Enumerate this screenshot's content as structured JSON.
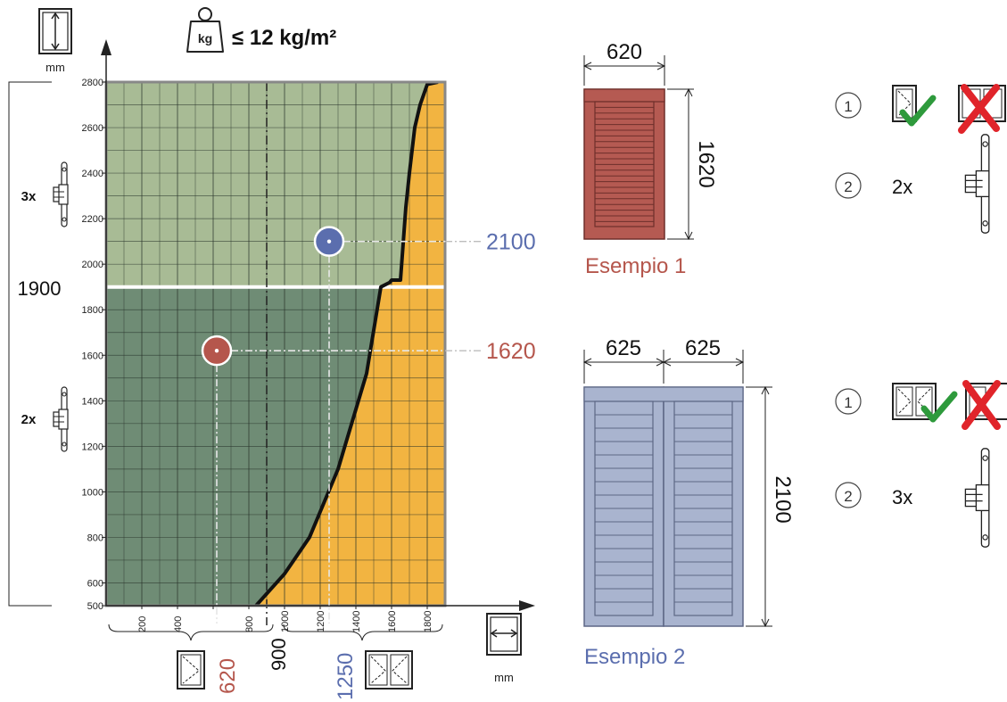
{
  "chart_data": {
    "type": "line",
    "title": "≤ 12 kg/m²",
    "title_icon": "kg",
    "x_unit": "mm",
    "y_unit": "mm",
    "xlim": [
      0,
      1900
    ],
    "ylim": [
      500,
      2800
    ],
    "x_ticks": [
      200,
      400,
      600,
      800,
      1000,
      1200,
      1400,
      1600,
      1800
    ],
    "x_tick_labels": [
      "200",
      "400",
      "",
      "800",
      "1000",
      "1200",
      "1400",
      "1600",
      "1800"
    ],
    "y_ticks": [
      500,
      600,
      800,
      1000,
      1200,
      1400,
      1600,
      1800,
      2000,
      2200,
      2400,
      2600,
      2800
    ],
    "y_tick_labels": [
      "500",
      "600",
      "800",
      "1000",
      "1200",
      "1400",
      "1600",
      "1800",
      "2000",
      "2200",
      "2400",
      "2600",
      "2800"
    ],
    "grid": true,
    "limit_curve": {
      "x": [
        840,
        1000,
        1140,
        1300,
        1460,
        1540,
        1590,
        1600,
        1650,
        1680,
        1700,
        1730,
        1760,
        1800,
        1860
      ],
      "y": [
        500,
        640,
        800,
        1100,
        1520,
        1900,
        1920,
        1930,
        1930,
        2250,
        2400,
        2600,
        2700,
        2790,
        2800
      ]
    },
    "hinge_threshold_y": 1900,
    "hinge_threshold_label": "1900",
    "divider_x": 900,
    "divider_label": "900",
    "hinge_zones": [
      {
        "label": "3x",
        "range": "above 1900"
      },
      {
        "label": "2x",
        "range": "below 1900"
      }
    ],
    "examples": [
      {
        "x": 620,
        "y": 1620,
        "x_label": "620",
        "y_label": "1620",
        "color": "#b5564c"
      },
      {
        "x": 1250,
        "y": 2100,
        "x_label": "1250",
        "y_label": "2100",
        "color": "#5b6eae"
      }
    ]
  },
  "colors": {
    "zone_light": "#a8bb95",
    "zone_dark": "#6f8c75",
    "zone_yellow": "#f2b441",
    "grid": "#26302a",
    "example1": "#b5564c",
    "example2": "#5b6eae",
    "shutter1": "#b55a52",
    "shutter2": "#a9b4cf",
    "check": "#2e9a3c",
    "cross": "#e0242a"
  },
  "example1": {
    "title": "Esempio 1",
    "width": "620",
    "height": "1620",
    "step1": "1",
    "step2": "2",
    "hinges": "2x"
  },
  "example2": {
    "title": "Esempio 2",
    "width_left": "625",
    "width_right": "625",
    "height": "2100",
    "step1": "1",
    "step2": "2",
    "hinges": "3x"
  },
  "icons": [
    "height-icon",
    "width-icon",
    "weight-icon",
    "hinge-icon",
    "single-leaf-icon",
    "double-leaf-icon",
    "check-icon",
    "cross-icon"
  ]
}
